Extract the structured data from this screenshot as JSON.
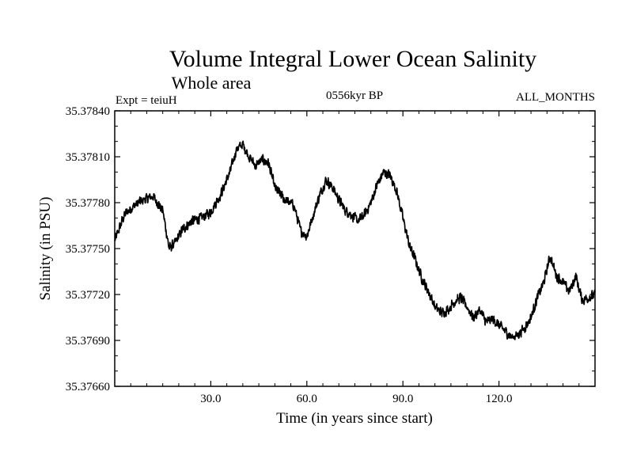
{
  "chart_data": {
    "type": "line",
    "title": "Volume Integral Lower Ocean Salinity",
    "subtitle": "Whole area",
    "experiment_label": "Expt = teiuH",
    "period_label": "0556kyr BP",
    "months_label": "ALL_MONTHS",
    "xlabel": "Time (in years since start)",
    "ylabel": "Salinity (in PSU)",
    "xlim": [
      0,
      150
    ],
    "ylim": [
      35.3766,
      35.3784
    ],
    "x_ticks": [
      30,
      60,
      90,
      120
    ],
    "x_tick_labels": [
      "30.0",
      "60.0",
      "90.0",
      "120.0"
    ],
    "y_ticks": [
      35.3766,
      35.3769,
      35.3772,
      35.3775,
      35.3778,
      35.3781,
      35.3784
    ],
    "y_tick_labels": [
      "35.37660",
      "35.37690",
      "35.37720",
      "35.37750",
      "35.37780",
      "35.37810",
      "35.37840"
    ],
    "grid": false,
    "noise_amplitude": 4e-05,
    "series": [
      {
        "name": "Salinity",
        "x": [
          0,
          3,
          6,
          9,
          12,
          15,
          17,
          19,
          21,
          24,
          27,
          30,
          33,
          36,
          38,
          40,
          42,
          44,
          46,
          48,
          50,
          53,
          56,
          58,
          60,
          62,
          64,
          66,
          68,
          70,
          72,
          74,
          76,
          78,
          80,
          82,
          84,
          86,
          88,
          90,
          92,
          94,
          96,
          98,
          100,
          102,
          104,
          106,
          108,
          110,
          112,
          114,
          116,
          118,
          120,
          122,
          124,
          126,
          128,
          130,
          132,
          134,
          136,
          138,
          140,
          142,
          144,
          146,
          148,
          150
        ],
        "values": [
          35.37755,
          35.37772,
          35.37778,
          35.37782,
          35.37784,
          35.37775,
          35.3775,
          35.37754,
          35.37762,
          35.37768,
          35.3777,
          35.37774,
          35.37785,
          35.378,
          35.37815,
          35.37818,
          35.3781,
          35.37804,
          35.37808,
          35.37806,
          35.3779,
          35.37782,
          35.37778,
          35.37762,
          35.37758,
          35.37772,
          35.37785,
          35.37795,
          35.3779,
          35.37782,
          35.37775,
          35.37772,
          35.37768,
          35.37772,
          35.3778,
          35.37792,
          35.378,
          35.37798,
          35.37788,
          35.3777,
          35.37752,
          35.37742,
          35.3773,
          35.37722,
          35.37712,
          35.37708,
          35.3771,
          35.37715,
          35.37718,
          35.37712,
          35.37705,
          35.3771,
          35.37702,
          35.37704,
          35.377,
          35.37696,
          35.37692,
          35.37694,
          35.37698,
          35.37705,
          35.37718,
          35.37728,
          35.37745,
          35.37732,
          35.37728,
          35.37722,
          35.37732,
          35.37716,
          35.37718,
          35.3772
        ]
      }
    ]
  }
}
